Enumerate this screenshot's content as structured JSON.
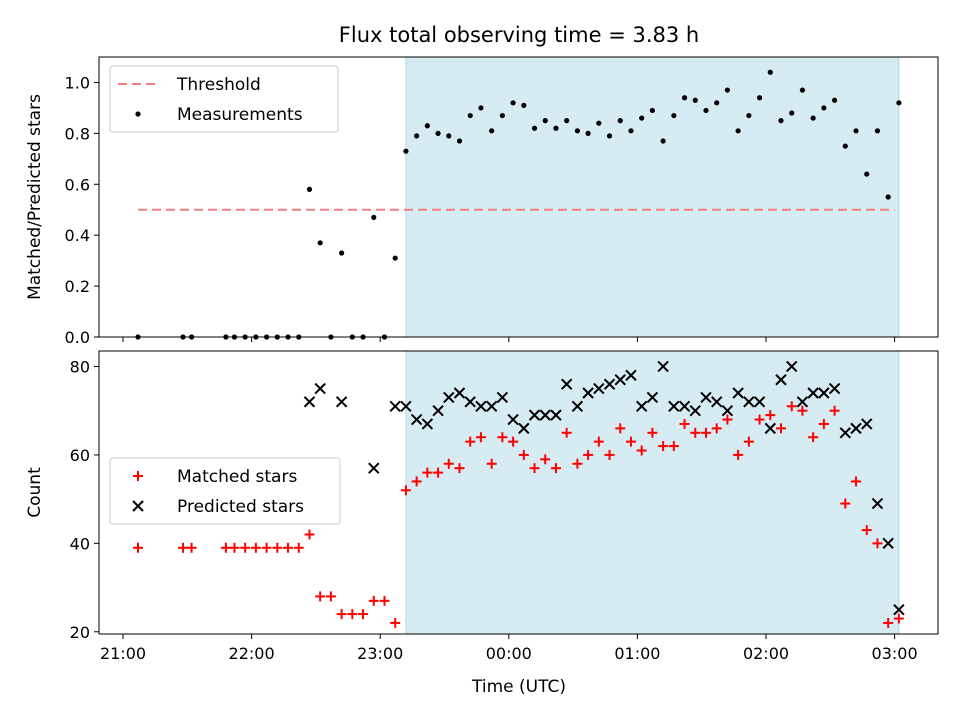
{
  "chart_data": {
    "title": "Flux total observing time = 3.83 h",
    "xlabel": "Time (UTC)",
    "x_ticks": [
      "21:00",
      "22:00",
      "23:00",
      "00:00",
      "01:00",
      "02:00",
      "03:00"
    ],
    "shaded_interval": {
      "start": "23:12",
      "end": "03:02",
      "color": "#add8e6"
    },
    "panels": [
      {
        "type": "scatter",
        "ylabel": "Matched/Predicted stars",
        "ylim": [
          0,
          1.1
        ],
        "y_ticks": [
          "0.0",
          "0.2",
          "0.4",
          "0.6",
          "0.8",
          "1.0"
        ],
        "legend_position": "upper-left",
        "series": [
          {
            "name": "Threshold",
            "style": "dashed-line",
            "color": "#f08080",
            "points": [
              [
                "21:07",
                0.5
              ],
              [
                "03:00",
                0.5
              ]
            ]
          },
          {
            "name": "Measurements",
            "style": "dot",
            "color": "#000000",
            "points": [
              [
                "21:07",
                0.0
              ],
              [
                "21:28",
                0.0
              ],
              [
                "21:32",
                0.0
              ],
              [
                "21:48",
                0.0
              ],
              [
                "21:52",
                0.0
              ],
              [
                "21:57",
                0.0
              ],
              [
                "22:02",
                0.0
              ],
              [
                "22:07",
                0.0
              ],
              [
                "22:12",
                0.0
              ],
              [
                "22:17",
                0.0
              ],
              [
                "22:22",
                0.0
              ],
              [
                "22:27",
                0.58
              ],
              [
                "22:32",
                0.37
              ],
              [
                "22:37",
                0.0
              ],
              [
                "22:42",
                0.33
              ],
              [
                "22:47",
                0.0
              ],
              [
                "22:52",
                0.0
              ],
              [
                "22:57",
                0.47
              ],
              [
                "23:02",
                0.0
              ],
              [
                "23:07",
                0.31
              ],
              [
                "23:12",
                0.73
              ],
              [
                "23:17",
                0.79
              ],
              [
                "23:22",
                0.83
              ],
              [
                "23:27",
                0.8
              ],
              [
                "23:32",
                0.79
              ],
              [
                "23:37",
                0.77
              ],
              [
                "23:42",
                0.87
              ],
              [
                "23:47",
                0.9
              ],
              [
                "23:52",
                0.81
              ],
              [
                "23:57",
                0.87
              ],
              [
                "00:02",
                0.92
              ],
              [
                "00:07",
                0.91
              ],
              [
                "00:12",
                0.82
              ],
              [
                "00:17",
                0.85
              ],
              [
                "00:22",
                0.82
              ],
              [
                "00:27",
                0.85
              ],
              [
                "00:32",
                0.81
              ],
              [
                "00:37",
                0.8
              ],
              [
                "00:42",
                0.84
              ],
              [
                "00:47",
                0.79
              ],
              [
                "00:52",
                0.85
              ],
              [
                "00:57",
                0.81
              ],
              [
                "01:02",
                0.86
              ],
              [
                "01:07",
                0.89
              ],
              [
                "01:12",
                0.77
              ],
              [
                "01:17",
                0.87
              ],
              [
                "01:22",
                0.94
              ],
              [
                "01:27",
                0.93
              ],
              [
                "01:32",
                0.89
              ],
              [
                "01:37",
                0.92
              ],
              [
                "01:42",
                0.97
              ],
              [
                "01:47",
                0.81
              ],
              [
                "01:52",
                0.87
              ],
              [
                "01:57",
                0.94
              ],
              [
                "02:02",
                1.04
              ],
              [
                "02:07",
                0.85
              ],
              [
                "02:12",
                0.88
              ],
              [
                "02:17",
                0.97
              ],
              [
                "02:22",
                0.86
              ],
              [
                "02:27",
                0.9
              ],
              [
                "02:32",
                0.93
              ],
              [
                "02:37",
                0.75
              ],
              [
                "02:42",
                0.81
              ],
              [
                "02:47",
                0.64
              ],
              [
                "02:52",
                0.81
              ],
              [
                "02:57",
                0.55
              ],
              [
                "03:02",
                0.92
              ]
            ]
          }
        ]
      },
      {
        "type": "scatter",
        "ylabel": "Count",
        "ylim": [
          19.5,
          83.5
        ],
        "y_ticks": [
          "20",
          "40",
          "60",
          "80"
        ],
        "legend_position": "center-left",
        "series": [
          {
            "name": "Matched stars",
            "style": "plus",
            "color": "#ff0000",
            "points": [
              [
                "21:07",
                39
              ],
              [
                "21:28",
                39
              ],
              [
                "21:32",
                39
              ],
              [
                "21:48",
                39
              ],
              [
                "21:52",
                39
              ],
              [
                "21:57",
                39
              ],
              [
                "22:02",
                39
              ],
              [
                "22:07",
                39
              ],
              [
                "22:12",
                39
              ],
              [
                "22:17",
                39
              ],
              [
                "22:22",
                39
              ],
              [
                "22:27",
                42
              ],
              [
                "22:32",
                28
              ],
              [
                "22:37",
                28
              ],
              [
                "22:42",
                24
              ],
              [
                "22:47",
                24
              ],
              [
                "22:52",
                24
              ],
              [
                "22:57",
                27
              ],
              [
                "23:02",
                27
              ],
              [
                "23:07",
                22
              ],
              [
                "23:12",
                52
              ],
              [
                "23:17",
                54
              ],
              [
                "23:22",
                56
              ],
              [
                "23:27",
                56
              ],
              [
                "23:32",
                58
              ],
              [
                "23:37",
                57
              ],
              [
                "23:42",
                63
              ],
              [
                "23:47",
                64
              ],
              [
                "23:52",
                58
              ],
              [
                "23:57",
                64
              ],
              [
                "00:02",
                63
              ],
              [
                "00:07",
                60
              ],
              [
                "00:12",
                57
              ],
              [
                "00:17",
                59
              ],
              [
                "00:22",
                57
              ],
              [
                "00:27",
                65
              ],
              [
                "00:32",
                58
              ],
              [
                "00:37",
                60
              ],
              [
                "00:42",
                63
              ],
              [
                "00:47",
                60
              ],
              [
                "00:52",
                66
              ],
              [
                "00:57",
                63
              ],
              [
                "01:02",
                61
              ],
              [
                "01:07",
                65
              ],
              [
                "01:12",
                62
              ],
              [
                "01:17",
                62
              ],
              [
                "01:22",
                67
              ],
              [
                "01:27",
                65
              ],
              [
                "01:32",
                65
              ],
              [
                "01:37",
                66
              ],
              [
                "01:42",
                68
              ],
              [
                "01:47",
                60
              ],
              [
                "01:52",
                63
              ],
              [
                "01:57",
                68
              ],
              [
                "02:02",
                69
              ],
              [
                "02:07",
                66
              ],
              [
                "02:12",
                71
              ],
              [
                "02:17",
                70
              ],
              [
                "02:22",
                64
              ],
              [
                "02:27",
                67
              ],
              [
                "02:32",
                70
              ],
              [
                "02:37",
                49
              ],
              [
                "02:42",
                54
              ],
              [
                "02:47",
                43
              ],
              [
                "02:52",
                40
              ],
              [
                "02:57",
                22
              ],
              [
                "03:02",
                23
              ]
            ]
          },
          {
            "name": "Predicted stars",
            "style": "x",
            "color": "#000000",
            "points": [
              [
                "22:27",
                72
              ],
              [
                "22:32",
                75
              ],
              [
                "22:42",
                72
              ],
              [
                "22:57",
                57
              ],
              [
                "23:07",
                71
              ],
              [
                "23:12",
                71
              ],
              [
                "23:17",
                68
              ],
              [
                "23:22",
                67
              ],
              [
                "23:27",
                70
              ],
              [
                "23:32",
                73
              ],
              [
                "23:37",
                74
              ],
              [
                "23:42",
                72
              ],
              [
                "23:47",
                71
              ],
              [
                "23:52",
                71
              ],
              [
                "23:57",
                73
              ],
              [
                "00:02",
                68
              ],
              [
                "00:07",
                66
              ],
              [
                "00:12",
                69
              ],
              [
                "00:17",
                69
              ],
              [
                "00:22",
                69
              ],
              [
                "00:27",
                76
              ],
              [
                "00:32",
                71
              ],
              [
                "00:37",
                74
              ],
              [
                "00:42",
                75
              ],
              [
                "00:47",
                76
              ],
              [
                "00:52",
                77
              ],
              [
                "00:57",
                78
              ],
              [
                "01:02",
                71
              ],
              [
                "01:07",
                73
              ],
              [
                "01:12",
                80
              ],
              [
                "01:17",
                71
              ],
              [
                "01:22",
                71
              ],
              [
                "01:27",
                70
              ],
              [
                "01:32",
                73
              ],
              [
                "01:37",
                72
              ],
              [
                "01:42",
                70
              ],
              [
                "01:47",
                74
              ],
              [
                "01:52",
                72
              ],
              [
                "01:57",
                72
              ],
              [
                "02:02",
                66
              ],
              [
                "02:07",
                77
              ],
              [
                "02:12",
                80
              ],
              [
                "02:17",
                72
              ],
              [
                "02:22",
                74
              ],
              [
                "02:27",
                74
              ],
              [
                "02:32",
                75
              ],
              [
                "02:37",
                65
              ],
              [
                "02:42",
                66
              ],
              [
                "02:47",
                67
              ],
              [
                "02:52",
                49
              ],
              [
                "02:57",
                40
              ],
              [
                "03:02",
                25
              ]
            ]
          }
        ]
      }
    ]
  }
}
